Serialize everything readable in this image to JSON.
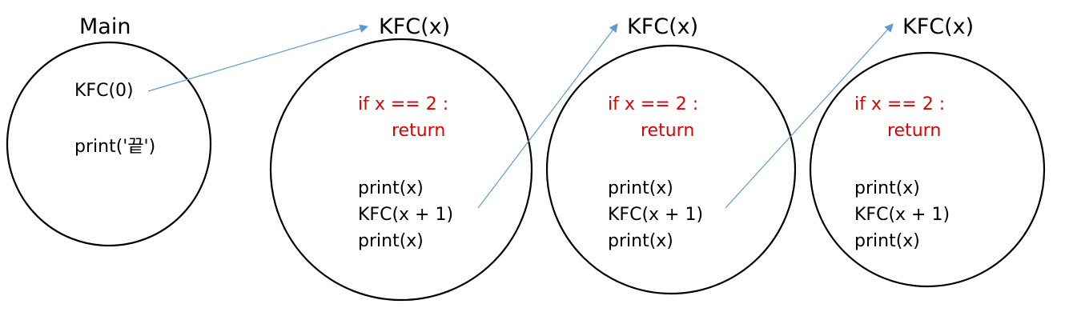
{
  "colors": {
    "text": "#000000",
    "base_case": "#e00000",
    "arrow": "#5b9bd5",
    "frame_stroke": "#000000"
  },
  "main": {
    "title": "Main",
    "call": "KFC(0)",
    "end": "print('끝')"
  },
  "frames": [
    {
      "title": "KFC(x)",
      "base_if": "if x == 2 :",
      "base_return": "return",
      "line1": "print(x)",
      "line2": "KFC(x + 1)",
      "line3": "print(x)"
    },
    {
      "title": "KFC(x)",
      "base_if": "if x == 2 :",
      "base_return": "return",
      "line1": "print(x)",
      "line2": "KFC(x + 1)",
      "line3": "print(x)"
    },
    {
      "title": "KFC(x)",
      "base_if": "if x == 2 :",
      "base_return": "return",
      "line1": "print(x)",
      "line2": "KFC(x + 1)",
      "line3": "print(x)"
    }
  ]
}
